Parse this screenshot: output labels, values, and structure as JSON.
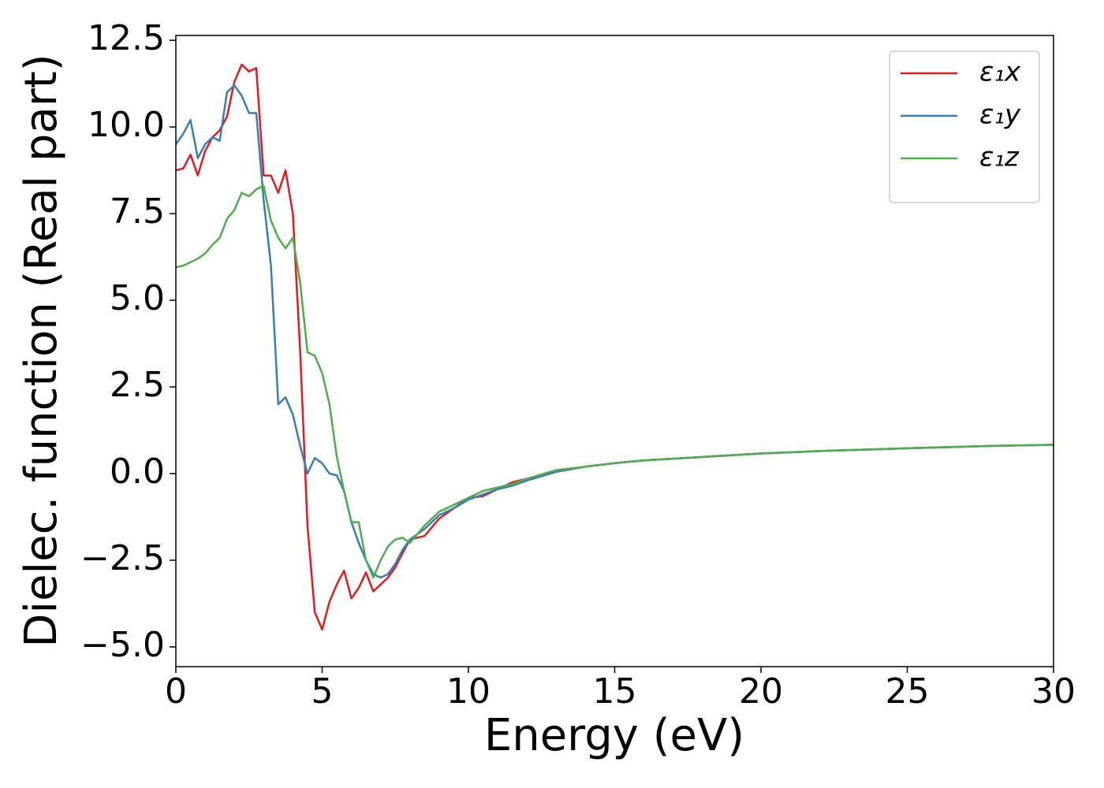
{
  "chart_data": {
    "type": "line",
    "xlabel": "Energy (eV)",
    "ylabel": "Dielec. function (Real part)",
    "x": [
      0,
      0.25,
      0.5,
      0.75,
      1,
      1.25,
      1.5,
      1.75,
      2,
      2.25,
      2.5,
      2.75,
      3,
      3.25,
      3.5,
      3.75,
      4,
      4.25,
      4.5,
      4.75,
      5,
      5.25,
      5.5,
      5.75,
      6,
      6.25,
      6.5,
      6.75,
      7,
      7.25,
      7.5,
      7.75,
      8,
      8.5,
      9,
      9.5,
      10,
      10.5,
      11,
      11.5,
      12,
      13,
      14,
      15,
      16,
      18,
      20,
      22,
      25,
      28,
      30
    ],
    "series": [
      {
        "name": "ε₁x",
        "color": "#e41a1c",
        "values": [
          8.75,
          8.8,
          9.2,
          8.6,
          9.3,
          9.7,
          9.9,
          10.3,
          11.3,
          11.8,
          11.6,
          11.7,
          8.6,
          8.6,
          8.1,
          8.75,
          7.5,
          3.5,
          -1.5,
          -4.0,
          -4.5,
          -3.7,
          -3.2,
          -2.8,
          -3.6,
          -3.3,
          -2.85,
          -3.4,
          -3.2,
          -3.0,
          -2.7,
          -2.3,
          -1.9,
          -1.8,
          -1.3,
          -1.0,
          -0.7,
          -0.65,
          -0.45,
          -0.25,
          -0.15,
          0.05,
          0.2,
          0.3,
          0.38,
          0.48,
          0.58,
          0.65,
          0.73,
          0.8,
          0.83
        ]
      },
      {
        "name": "ε₁y",
        "color": "#377eb8",
        "values": [
          9.5,
          9.8,
          10.2,
          9.1,
          9.5,
          9.7,
          9.6,
          11.0,
          11.2,
          10.9,
          10.4,
          10.4,
          7.9,
          6.0,
          2.0,
          2.2,
          1.7,
          0.8,
          0.0,
          0.45,
          0.3,
          0.0,
          -0.05,
          -0.5,
          -1.4,
          -2.0,
          -2.5,
          -2.9,
          -3.0,
          -2.9,
          -2.6,
          -2.2,
          -1.9,
          -1.6,
          -1.2,
          -1.0,
          -0.75,
          -0.6,
          -0.45,
          -0.35,
          -0.2,
          0.05,
          0.2,
          0.3,
          0.38,
          0.48,
          0.58,
          0.65,
          0.73,
          0.8,
          0.83
        ]
      },
      {
        "name": "ε₁z",
        "color": "#4daf4a",
        "values": [
          5.95,
          6.0,
          6.1,
          6.2,
          6.35,
          6.6,
          6.8,
          7.35,
          7.6,
          8.1,
          8.0,
          8.2,
          8.3,
          7.3,
          6.8,
          6.5,
          6.8,
          5.5,
          3.5,
          3.4,
          2.9,
          2.0,
          0.5,
          -0.5,
          -1.4,
          -1.4,
          -2.5,
          -3.0,
          -2.5,
          -2.1,
          -1.9,
          -1.85,
          -2.0,
          -1.5,
          -1.1,
          -0.9,
          -0.7,
          -0.5,
          -0.4,
          -0.3,
          -0.15,
          0.1,
          0.2,
          0.3,
          0.38,
          0.48,
          0.58,
          0.65,
          0.73,
          0.8,
          0.83
        ]
      }
    ],
    "xlim": [
      0,
      30
    ],
    "xticks": [
      0,
      5,
      10,
      15,
      20,
      25,
      30
    ],
    "ylim": [
      -5.57,
      12.64
    ],
    "yticks": [
      {
        "value": -5,
        "label": "−5.0"
      },
      {
        "value": -2.5,
        "label": "−2.5"
      },
      {
        "value": 0,
        "label": "0.0"
      },
      {
        "value": 2.5,
        "label": "2.5"
      },
      {
        "value": 5,
        "label": "5.0"
      },
      {
        "value": 7.5,
        "label": "7.5"
      },
      {
        "value": 10,
        "label": "10.0"
      },
      {
        "value": 12.5,
        "label": "12.5"
      }
    ],
    "legend": "upper right"
  }
}
